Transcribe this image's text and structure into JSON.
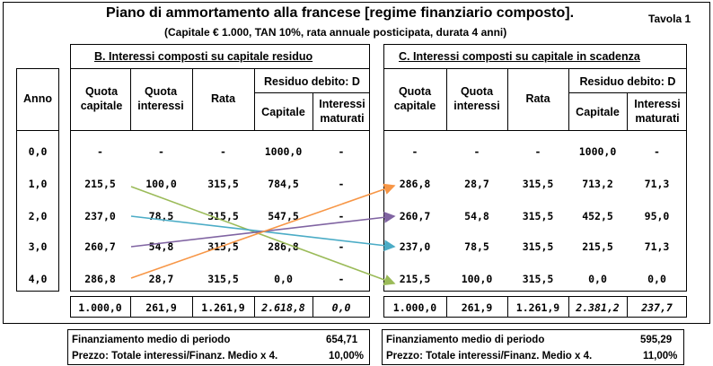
{
  "title": "Piano di ammortamento alla francese [regime finanziario composto].",
  "subtitle": "(Capitale € 1.000, TAN 10%, rata annuale posticipata, durata 4 anni)",
  "table_label": "Tavola 1",
  "anno_header": "Anno",
  "anni": [
    "0,0",
    "1,0",
    "2,0",
    "3,0",
    "4,0"
  ],
  "section_b": {
    "title": "B.   Interessi composti su capitale residuo",
    "headers": {
      "quota_capitale": "Quota capitale",
      "quota_interessi": "Quota interessi",
      "rata": "Rata",
      "residuo": "Residuo debito: D",
      "capitale": "Capitale",
      "interessi_maturati": "Interessi maturati"
    },
    "rows": [
      [
        "-",
        "-",
        "-",
        "1000,0",
        "-"
      ],
      [
        "215,5",
        "100,0",
        "315,5",
        "784,5",
        "-"
      ],
      [
        "237,0",
        "78,5",
        "315,5",
        "547,5",
        "-"
      ],
      [
        "260,7",
        "54,8",
        "315,5",
        "286,8",
        "-"
      ],
      [
        "286,8",
        "28,7",
        "315,5",
        "0,0",
        "-"
      ]
    ],
    "totals": [
      "1.000,0",
      "261,9",
      "1.261,9",
      "2.618,8",
      "0,0"
    ],
    "footer": [
      {
        "label": "Finanziamento medio di periodo",
        "value": "654,71"
      },
      {
        "label": "Prezzo: Totale interessi/Finanz. Medio x 4.",
        "value": "10,00%"
      }
    ]
  },
  "section_c": {
    "title": "C.   Interessi composti su capitale in scadenza",
    "headers": {
      "quota_capitale": "Quota capitale",
      "quota_interessi": "Quota interessi",
      "rata": "Rata",
      "residuo": "Residuo debito: D",
      "capitale": "Capitale",
      "interessi_maturati": "Interessi maturati"
    },
    "rows": [
      [
        "-",
        "-",
        "-",
        "1000,0",
        "-"
      ],
      [
        "286,8",
        "28,7",
        "315,5",
        "713,2",
        "71,3"
      ],
      [
        "260,7",
        "54,8",
        "315,5",
        "452,5",
        "95,0"
      ],
      [
        "237,0",
        "78,5",
        "315,5",
        "215,5",
        "71,3"
      ],
      [
        "215,5",
        "100,0",
        "315,5",
        "0,0",
        "0,0"
      ]
    ],
    "totals": [
      "1.000,0",
      "261,9",
      "1.261,9",
      "2.381,2",
      "237,7"
    ],
    "footer": [
      {
        "label": "Finanziamento medio di periodo",
        "value": "595,29"
      },
      {
        "label": "Prezzo: Totale interessi/Finanz. Medio x 4.",
        "value": "11,00%"
      }
    ]
  },
  "colors": {
    "arrow_1": "#9bbb59",
    "arrow_2": "#4bacc6",
    "arrow_3": "#8064a2",
    "arrow_4": "#f79646"
  }
}
